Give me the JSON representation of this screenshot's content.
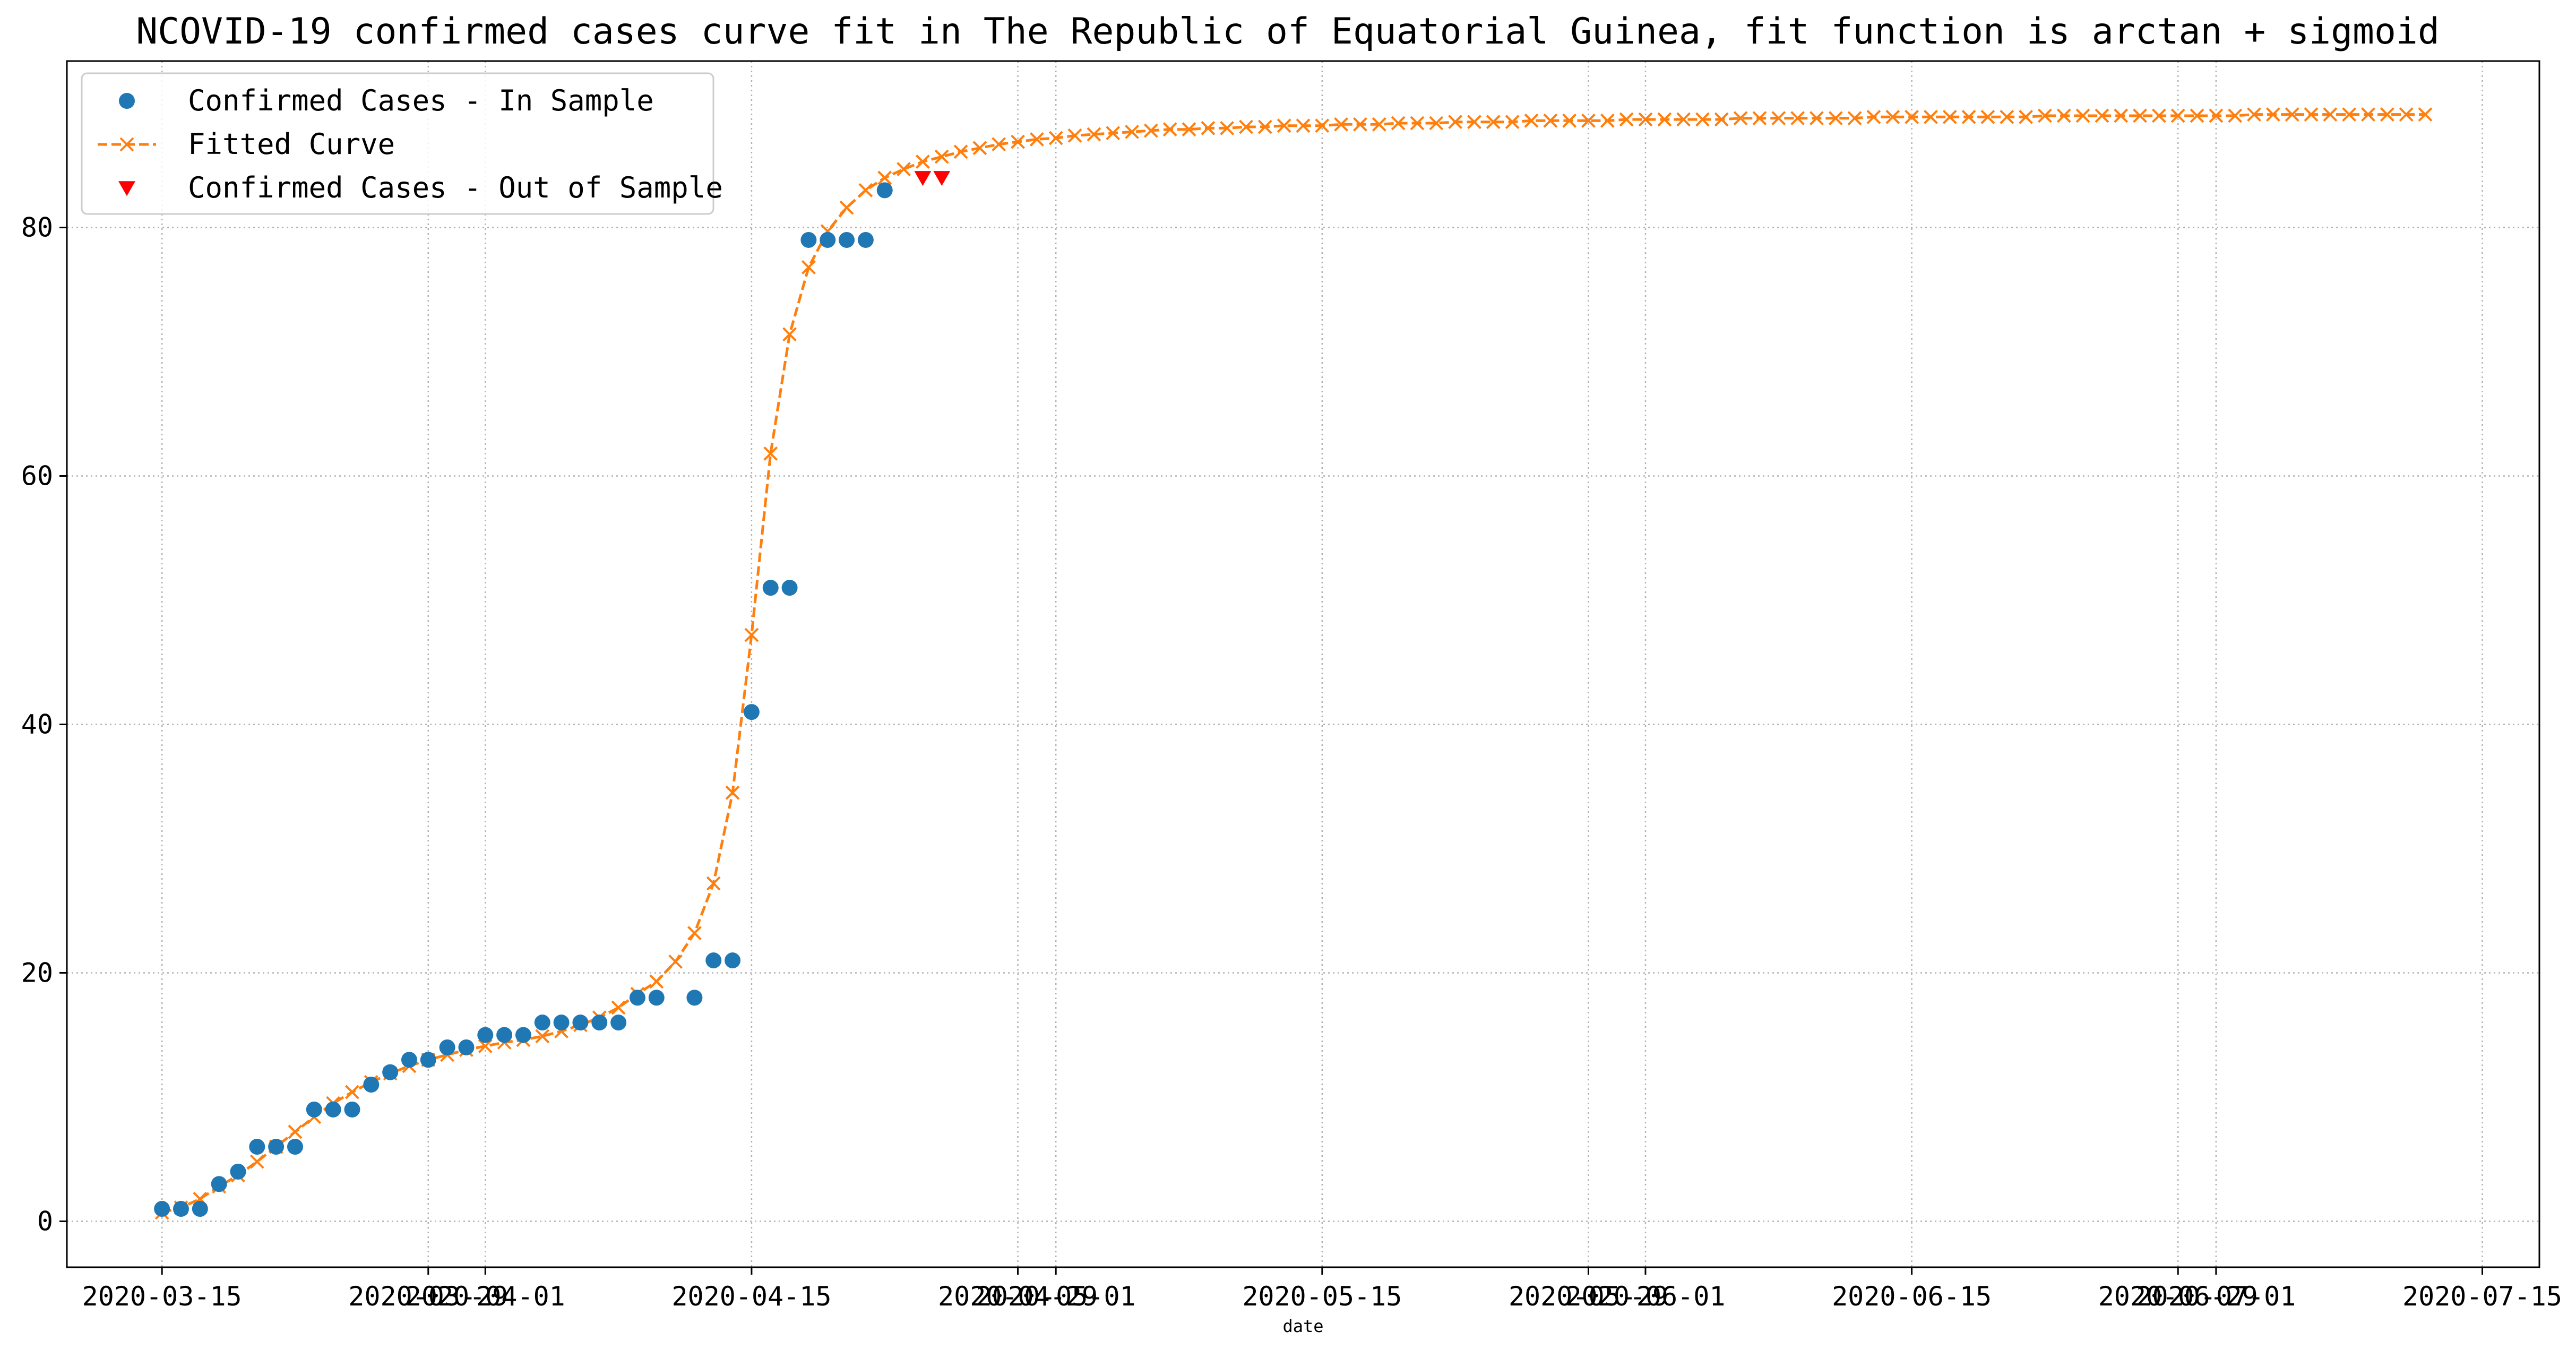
{
  "chart_data": {
    "type": "line",
    "title": "NCOVID-19 confirmed cases curve fit in The Republic of Equatorial Guinea, fit function is arctan + sigmoid",
    "xlabel": "date",
    "ylabel": "",
    "x_start": "2020-03-15",
    "x_end": "2020-07-15",
    "xlim": [
      "2020-03-10",
      "2020-07-18"
    ],
    "ylim": [
      -3.7,
      93.4
    ],
    "x_ticks": [
      {
        "date": "2020-03-15",
        "label": "2020-03-15"
      },
      {
        "date": "2020-03-29",
        "label": "2020-03-29"
      },
      {
        "date": "2020-04-01",
        "label": "2020-04-01"
      },
      {
        "date": "2020-04-15",
        "label": "2020-04-15"
      },
      {
        "date": "2020-04-29",
        "label": "2020-04-29"
      },
      {
        "date": "2020-05-01",
        "label": "2020-05-01"
      },
      {
        "date": "2020-05-15",
        "label": "2020-05-15"
      },
      {
        "date": "2020-05-29",
        "label": "2020-05-29"
      },
      {
        "date": "2020-06-01",
        "label": "2020-06-01"
      },
      {
        "date": "2020-06-15",
        "label": "2020-06-15"
      },
      {
        "date": "2020-06-29",
        "label": "2020-06-29"
      },
      {
        "date": "2020-07-01",
        "label": "2020-07-01"
      },
      {
        "date": "2020-07-15",
        "label": "2020-07-15"
      }
    ],
    "y_ticks": [
      0,
      20,
      40,
      60,
      80
    ],
    "grid": true,
    "legend_position": "top-left",
    "series": [
      {
        "name": "Confirmed Cases - In Sample",
        "style": "markers",
        "marker": "circle",
        "color": "#1f77b4",
        "start_date": "2020-03-15",
        "values": [
          1,
          1,
          1,
          3,
          4,
          6,
          6,
          6,
          9,
          9,
          9,
          11,
          12,
          13,
          13,
          14,
          14,
          15,
          15,
          15,
          16,
          16,
          16,
          16,
          16,
          18,
          18,
          null,
          18,
          21,
          21,
          41,
          51,
          51,
          79,
          79,
          79,
          79,
          83
        ]
      },
      {
        "name": "Fitted Curve",
        "style": "dashed-line-with-x-markers",
        "marker": "x",
        "color": "#ff7f0e",
        "start_date": "2020-03-15",
        "values": [
          0.7,
          1.1,
          1.8,
          2.8,
          3.7,
          4.8,
          6.0,
          7.2,
          8.4,
          9.5,
          10.4,
          11.2,
          11.9,
          12.5,
          13.0,
          13.4,
          13.8,
          14.1,
          14.4,
          14.6,
          14.9,
          15.3,
          15.8,
          16.4,
          17.2,
          18.3,
          19.3,
          20.9,
          23.2,
          27.2,
          34.5,
          47.2,
          61.8,
          71.4,
          76.8,
          79.7,
          81.6,
          83.0,
          84.0,
          84.7,
          85.3,
          85.7,
          86.1,
          86.4,
          86.7,
          86.9,
          87.1,
          87.2,
          87.4,
          87.5,
          87.6,
          87.7,
          87.8,
          87.9,
          87.9,
          88.0,
          88.0,
          88.1,
          88.1,
          88.2,
          88.2,
          88.2,
          88.3,
          88.3,
          88.3,
          88.4,
          88.4,
          88.4,
          88.5,
          88.5,
          88.5,
          88.5,
          88.6,
          88.6,
          88.6,
          88.6,
          88.6,
          88.7,
          88.7,
          88.7,
          88.7,
          88.7,
          88.7,
          88.8,
          88.8,
          88.8,
          88.8,
          88.8,
          88.8,
          88.8,
          88.9,
          88.9,
          88.9,
          88.9,
          88.9,
          88.9,
          88.9,
          88.9,
          88.9,
          89.0,
          89.0,
          89.0,
          89.0,
          89.0,
          89.0,
          89.0,
          89.0,
          89.0,
          89.0,
          89.0,
          89.1,
          89.1,
          89.1,
          89.1,
          89.1,
          89.1,
          89.1,
          89.1,
          89.1,
          89.1
        ]
      },
      {
        "name": "Confirmed Cases - Out of Sample",
        "style": "markers",
        "marker": "triangle-down",
        "color": "#ff0000",
        "start_date": "2020-04-24",
        "values": [
          84,
          84
        ]
      }
    ]
  }
}
